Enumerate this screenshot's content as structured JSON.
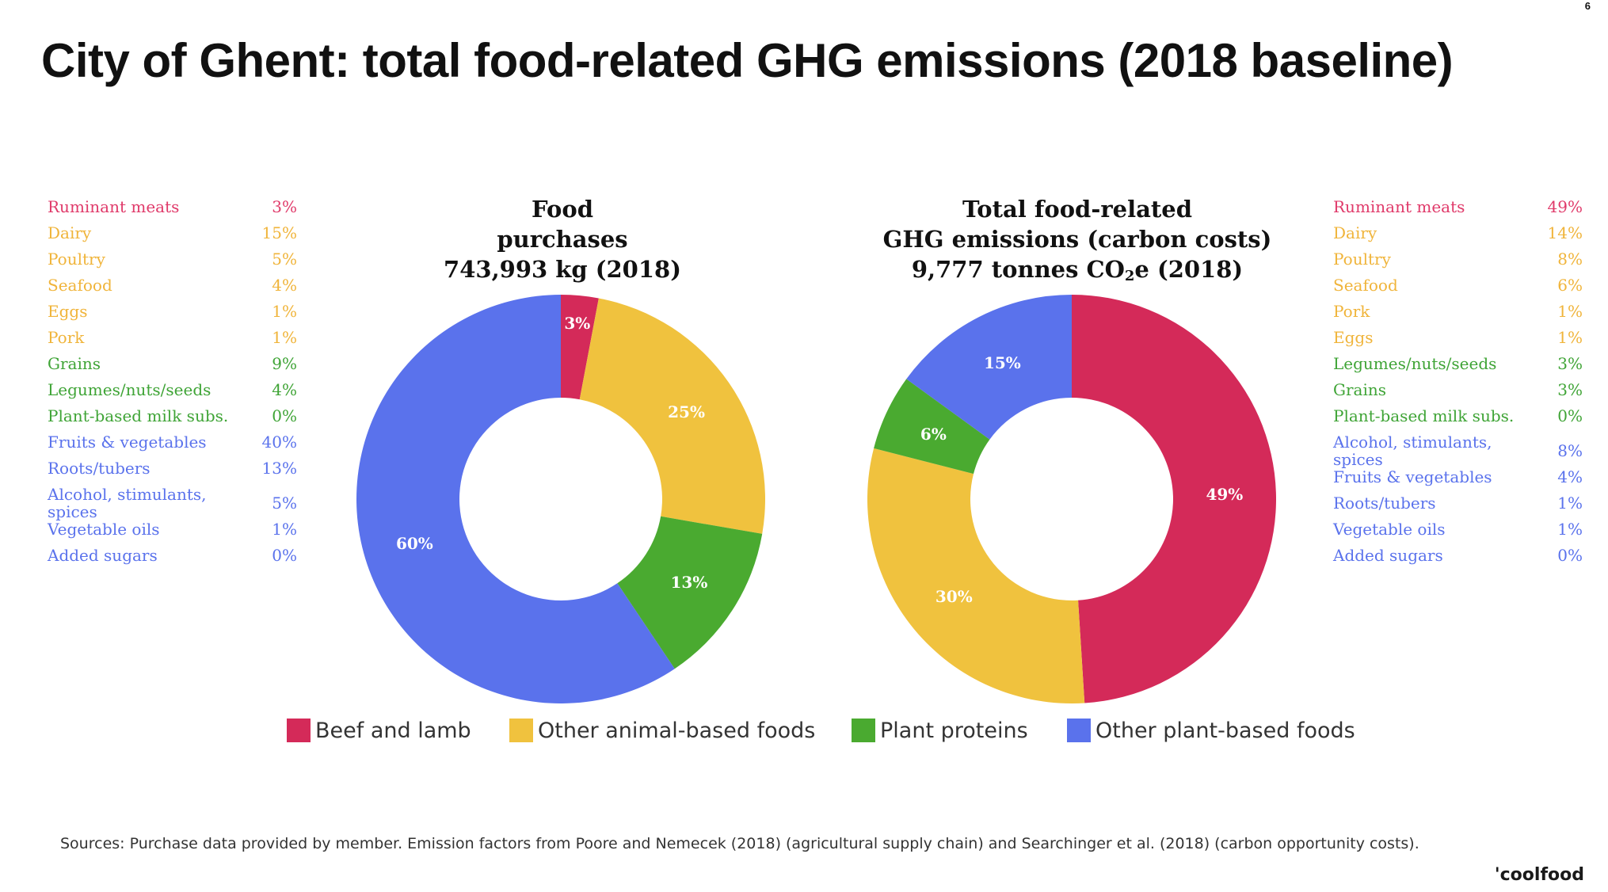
{
  "page_number": "6",
  "title": "City of Ghent: total food-related GHG emissions (2018 baseline)",
  "legend_left": [
    {
      "name": "Ruminant meats",
      "pct": "3%",
      "color": "#e03a6a"
    },
    {
      "name": "Dairy",
      "pct": "15%",
      "color": "#f0b43a"
    },
    {
      "name": "Poultry",
      "pct": "5%",
      "color": "#f0b43a"
    },
    {
      "name": "Seafood",
      "pct": "4%",
      "color": "#f0b43a"
    },
    {
      "name": "Eggs",
      "pct": "1%",
      "color": "#f0b43a"
    },
    {
      "name": "Pork",
      "pct": "1%",
      "color": "#f0b43a"
    },
    {
      "name": "Grains",
      "pct": "9%",
      "color": "#3fa436"
    },
    {
      "name": "Legumes/nuts/seeds",
      "pct": "4%",
      "color": "#3fa436"
    },
    {
      "name": "Plant-based milk subs.",
      "pct": "0%",
      "color": "#3fa436"
    },
    {
      "name": "Fruits & vegetables",
      "pct": "40%",
      "color": "#5a72ec"
    },
    {
      "name": "Roots/tubers",
      "pct": "13%",
      "color": "#5a72ec"
    },
    {
      "name": "Alcohol, stimulants, spices",
      "pct": "5%",
      "color": "#5a72ec"
    },
    {
      "name": "Vegetable oils",
      "pct": "1%",
      "color": "#5a72ec"
    },
    {
      "name": "Added sugars",
      "pct": "0%",
      "color": "#5a72ec"
    }
  ],
  "legend_right": [
    {
      "name": "Ruminant meats",
      "pct": "49%",
      "color": "#e03a6a"
    },
    {
      "name": "Dairy",
      "pct": "14%",
      "color": "#f0b43a"
    },
    {
      "name": "Poultry",
      "pct": "8%",
      "color": "#f0b43a"
    },
    {
      "name": "Seafood",
      "pct": "6%",
      "color": "#f0b43a"
    },
    {
      "name": "Pork",
      "pct": "1%",
      "color": "#f0b43a"
    },
    {
      "name": "Eggs",
      "pct": "1%",
      "color": "#f0b43a"
    },
    {
      "name": "Legumes/nuts/seeds",
      "pct": "3%",
      "color": "#3fa436"
    },
    {
      "name": "Grains",
      "pct": "3%",
      "color": "#3fa436"
    },
    {
      "name": "Plant-based milk subs.",
      "pct": "0%",
      "color": "#3fa436"
    },
    {
      "name": "Alcohol, stimulants, spices",
      "pct": "8%",
      "color": "#5a72ec"
    },
    {
      "name": "Fruits & vegetables",
      "pct": "4%",
      "color": "#5a72ec"
    },
    {
      "name": "Roots/tubers",
      "pct": "1%",
      "color": "#5a72ec"
    },
    {
      "name": "Vegetable oils",
      "pct": "1%",
      "color": "#5a72ec"
    },
    {
      "name": "Added sugars",
      "pct": "0%",
      "color": "#5a72ec"
    }
  ],
  "chart_data": [
    {
      "type": "pie",
      "donut": true,
      "title_lines": [
        "Food",
        "purchases",
        "743,993 kg (2018)"
      ],
      "categories": [
        "Beef and lamb",
        "Other animal-based foods",
        "Plant proteins",
        "Other plant-based foods"
      ],
      "values": [
        3,
        25,
        13,
        60
      ],
      "labels": [
        "3%",
        "25%",
        "13%",
        "60%"
      ],
      "colors": [
        "#d42a59",
        "#f0c23e",
        "#4aaa30",
        "#5a72ec"
      ]
    },
    {
      "type": "pie",
      "donut": true,
      "title_lines": [
        "Total food-related",
        "GHG emissions (carbon costs)",
        "9,777 tonnes CO",
        "2",
        "e (2018)"
      ],
      "categories": [
        "Beef and lamb",
        "Other animal-based foods",
        "Plant proteins",
        "Other plant-based foods"
      ],
      "values": [
        49,
        30,
        6,
        15
      ],
      "labels": [
        "49%",
        "30%",
        "6%",
        "15%"
      ],
      "colors": [
        "#d42a59",
        "#f0c23e",
        "#4aaa30",
        "#5a72ec"
      ]
    }
  ],
  "key": [
    {
      "label": "Beef and lamb",
      "color": "#d42a59"
    },
    {
      "label": "Other animal-based foods",
      "color": "#f0c23e"
    },
    {
      "label": "Plant proteins",
      "color": "#4aaa30"
    },
    {
      "label": "Other plant-based foods",
      "color": "#5a72ec"
    }
  ],
  "sources": "Sources: Purchase data provided by member. Emission factors from Poore and Nemecek (2018) (agricultural supply chain) and Searchinger et al. (2018) (carbon opportunity costs).",
  "brand": "'coolfood"
}
